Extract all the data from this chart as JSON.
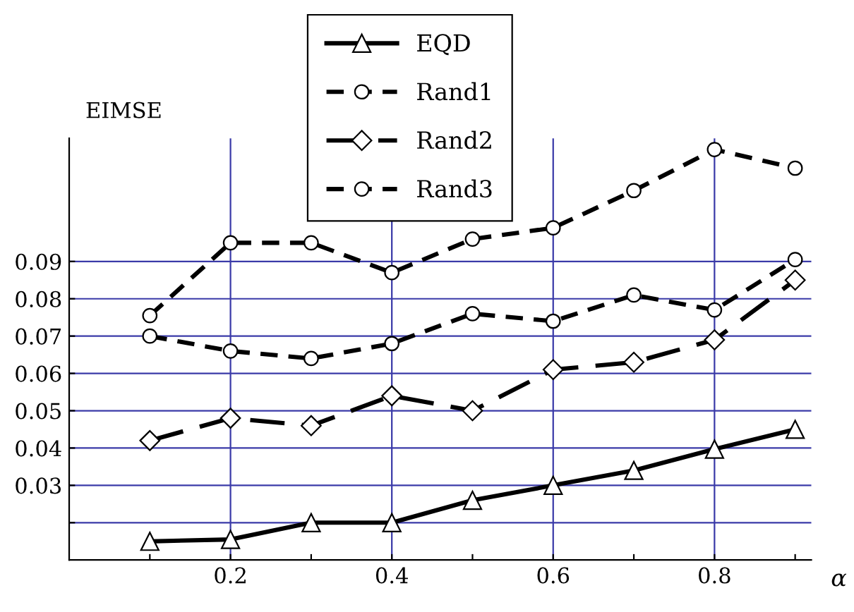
{
  "chart_data": {
    "type": "line",
    "ylabel": "EIMSE",
    "xlabel": "α",
    "x": [
      0.1,
      0.2,
      0.3,
      0.4,
      0.5,
      0.6,
      0.7,
      0.8,
      0.9
    ],
    "series": [
      {
        "name": "EQD",
        "color": "#000000",
        "marker": "triangle",
        "line_style": "solid",
        "values": [
          0.015,
          0.0155,
          0.02,
          0.02,
          0.026,
          0.03,
          0.034,
          0.0397,
          0.045
        ]
      },
      {
        "name": "Rand1",
        "color": "#000000",
        "marker": "circle",
        "line_style": "dashed",
        "values": [
          0.07,
          0.066,
          0.064,
          0.068,
          0.076,
          0.074,
          0.081,
          0.077,
          0.0905
        ]
      },
      {
        "name": "Rand2",
        "color": "#000000",
        "marker": "diamond",
        "line_style": "longdash",
        "values": [
          0.042,
          0.048,
          0.046,
          0.054,
          0.05,
          0.061,
          0.063,
          0.069,
          0.085
        ]
      },
      {
        "name": "Rand3",
        "color": "#000000",
        "marker": "circle",
        "line_style": "dashed",
        "values": [
          0.0755,
          0.095,
          0.095,
          0.087,
          0.096,
          0.099,
          0.109,
          0.12,
          0.115
        ]
      }
    ],
    "xlim": [
      0,
      0.92
    ],
    "ylim": [
      0.01,
      0.123
    ],
    "xticks": [
      {
        "value": 0.1,
        "label": null
      },
      0.2,
      {
        "value": 0.3,
        "label": null
      },
      0.4,
      {
        "value": 0.5,
        "label": null
      },
      0.6,
      {
        "value": 0.7,
        "label": null
      },
      0.8,
      {
        "value": 0.9,
        "label": null
      }
    ],
    "yticks": [
      {
        "value": 0.02,
        "label": null
      },
      0.03,
      0.04,
      0.05,
      0.06,
      0.07,
      0.08,
      0.09
    ],
    "grid": true,
    "legend": "top"
  }
}
